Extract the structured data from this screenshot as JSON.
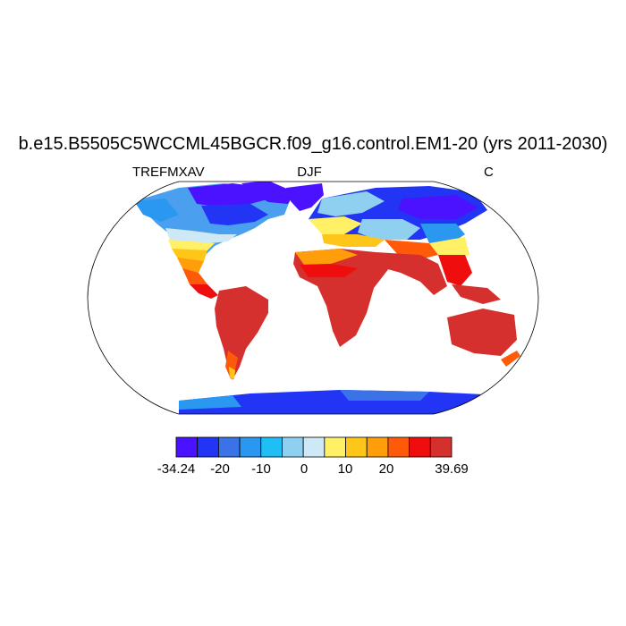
{
  "title": "b.e15.B5505C5WCCML45BGCR.f09_g16.control.EM1-20 (yrs 2011-2030)",
  "left_label": "TREFMXAV",
  "center_label": "DJF",
  "right_label": "C",
  "colorbar": {
    "colors": [
      "#4b12ff",
      "#2235f5",
      "#3a72e8",
      "#2a97f0",
      "#1fbff5",
      "#8fd0f0",
      "#cfe8f5",
      "#fff066",
      "#ffc61a",
      "#ff9e0a",
      "#ff5a0a",
      "#ef0d0d",
      "#d6302e"
    ],
    "tick_labels": [
      "-34.24",
      "-20",
      "-10",
      "0",
      "10",
      "20",
      "39.69"
    ]
  },
  "colors": {
    "ocean": "#ffffff",
    "coast": "#000000"
  }
}
